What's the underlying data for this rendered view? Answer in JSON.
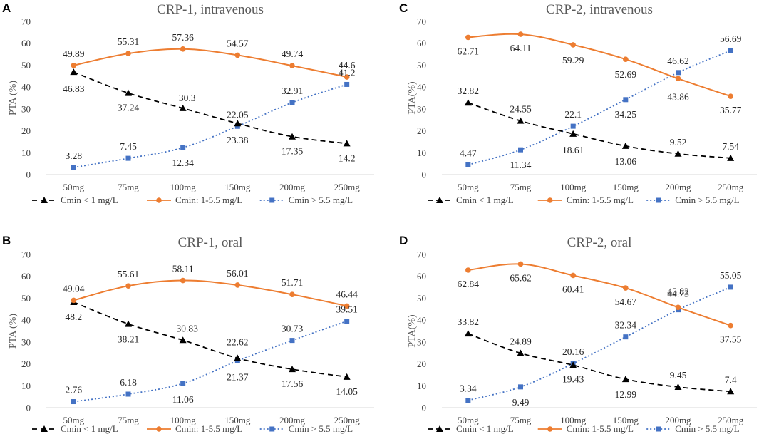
{
  "figure": {
    "background": "#ffffff"
  },
  "series_styles": [
    {
      "key": "low",
      "name": "Cmin < 1 mg/L",
      "color": "#000000",
      "dash": "7,5",
      "marker": "triangle"
    },
    {
      "key": "mid",
      "name": "Cmin: 1-5.5 mg/L",
      "color": "#ED7D31",
      "dash": "",
      "marker": "circle"
    },
    {
      "key": "high",
      "name": "Cmin > 5.5 mg/L",
      "color": "#4472C4",
      "dash": "2,3",
      "marker": "square"
    }
  ],
  "chart_data": [
    {
      "panel": "A",
      "type": "line",
      "title": "CRP-1, intravenous",
      "ylabel": "PTA (%)",
      "xlabel": "",
      "categories": [
        "50mg",
        "75mg",
        "100mg",
        "150mg",
        "200mg",
        "250mg"
      ],
      "ylim": [
        0,
        70
      ],
      "yticks": [
        0,
        10,
        20,
        30,
        40,
        50,
        60,
        70
      ],
      "series": [
        {
          "name": "Cmin < 1 mg/L",
          "values": [
            46.83,
            37.24,
            30.3,
            23.38,
            17.35,
            14.2
          ],
          "labels": [
            "46.83",
            "37.24",
            "30.3",
            "23.38",
            "17.35",
            "14.2"
          ]
        },
        {
          "name": "Cmin: 1-5.5 mg/L",
          "values": [
            49.89,
            55.31,
            57.36,
            54.57,
            49.74,
            44.6
          ],
          "labels": [
            "49.89",
            "55.31",
            "57.36",
            "54.57",
            "49.74",
            "44.6"
          ]
        },
        {
          "name": "Cmin > 5.5 mg/L",
          "values": [
            3.28,
            7.45,
            12.34,
            22.05,
            32.91,
            41.2
          ],
          "labels": [
            "3.28",
            "7.45",
            "12.34",
            "22.05",
            "32.91",
            "41.2"
          ]
        }
      ]
    },
    {
      "panel": "C",
      "type": "line",
      "title": "CRP-2, intravenous",
      "ylabel": "PTA(%)",
      "xlabel": "",
      "categories": [
        "50mg",
        "75mg",
        "100mg",
        "150mg",
        "200mg",
        "250mg"
      ],
      "ylim": [
        0,
        70
      ],
      "yticks": [
        0,
        10,
        20,
        30,
        40,
        50,
        60,
        70
      ],
      "series": [
        {
          "name": "Cmin < 1 mg/L",
          "values": [
            32.82,
            24.55,
            18.61,
            13.06,
            9.52,
            7.54
          ],
          "labels": [
            "32.82",
            "24.55",
            "18.61",
            "13.06",
            "9.52",
            "7.54"
          ]
        },
        {
          "name": "Cmin: 1-5.5 mg/L",
          "values": [
            62.71,
            64.11,
            59.29,
            52.69,
            43.86,
            35.77
          ],
          "labels": [
            "62.71",
            "64.11",
            "59.29",
            "52.69",
            "43.86",
            "35.77"
          ]
        },
        {
          "name": "Cmin > 5.5 mg/L",
          "values": [
            4.47,
            11.34,
            22.1,
            34.25,
            46.62,
            56.69
          ],
          "labels": [
            "4.47",
            "11.34",
            "22.1",
            "34.25",
            "46.62",
            "56.69"
          ]
        }
      ]
    },
    {
      "panel": "B",
      "type": "line",
      "title": "CRP-1, oral",
      "ylabel": "PTA (%)",
      "xlabel": "",
      "categories": [
        "50mg",
        "75mg",
        "100mg",
        "150mg",
        "200mg",
        "250mg"
      ],
      "ylim": [
        0,
        70
      ],
      "yticks": [
        0,
        10,
        20,
        30,
        40,
        50,
        60,
        70
      ],
      "series": [
        {
          "name": "Cmin < 1 mg/L",
          "values": [
            48.2,
            38.21,
            30.83,
            22.62,
            17.56,
            14.05
          ],
          "labels": [
            "48.2",
            "38.21",
            "30.83",
            "22.62",
            "17.56",
            "14.05"
          ]
        },
        {
          "name": "Cmin: 1-5.5 mg/L",
          "values": [
            49.04,
            55.61,
            58.11,
            56.01,
            51.71,
            46.44
          ],
          "labels": [
            "49.04",
            "55.61",
            "58.11",
            "56.01",
            "51.71",
            "46.44"
          ]
        },
        {
          "name": "Cmin > 5.5 mg/L",
          "values": [
            2.76,
            6.18,
            11.06,
            21.37,
            30.73,
            39.51
          ],
          "labels": [
            "2.76",
            "6.18",
            "11.06",
            "21.37",
            "30.73",
            "39.51"
          ]
        }
      ]
    },
    {
      "panel": "D",
      "type": "line",
      "title": "CRP-2, oral",
      "ylabel": "PTA(%)",
      "xlabel": "",
      "categories": [
        "50mg",
        "75mg",
        "100mg",
        "150mg",
        "200mg",
        "250mg"
      ],
      "ylim": [
        0,
        70
      ],
      "yticks": [
        0,
        10,
        20,
        30,
        40,
        50,
        60,
        70
      ],
      "series": [
        {
          "name": "Cmin < 1 mg/L",
          "values": [
            33.82,
            24.89,
            19.43,
            12.99,
            9.45,
            7.4
          ],
          "labels": [
            "33.82",
            "24.89",
            "19.43",
            "12.99",
            "9.45",
            "7.4"
          ]
        },
        {
          "name": "Cmin: 1-5.5 mg/L",
          "values": [
            62.84,
            65.62,
            60.41,
            54.67,
            45.82,
            37.55
          ],
          "labels": [
            "62.84",
            "65.62",
            "60.41",
            "54.67",
            "45.82",
            "37.55"
          ]
        },
        {
          "name": "Cmin > 5.5 mg/L",
          "values": [
            3.34,
            9.49,
            20.16,
            32.34,
            44.73,
            55.05
          ],
          "labels": [
            "3.34",
            "9.49",
            "20.16",
            "32.34",
            "44.73",
            "55.05"
          ]
        }
      ]
    }
  ]
}
